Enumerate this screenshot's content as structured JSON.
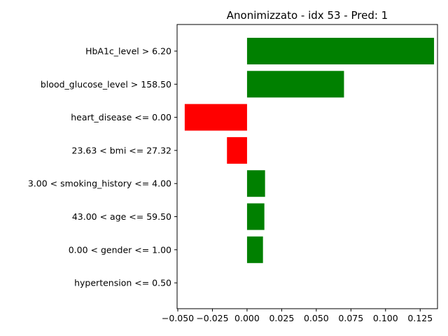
{
  "chart_data": {
    "type": "bar",
    "orientation": "horizontal",
    "title": "Anonimizzato - idx 53 - Pred: 1",
    "xlabel": "",
    "ylabel": "",
    "xlim": [
      -0.0505,
      0.1375
    ],
    "x_ticks": [
      -0.05,
      -0.025,
      0.0,
      0.025,
      0.05,
      0.075,
      0.1,
      0.125
    ],
    "x_tick_labels": [
      "−0.050",
      "−0.025",
      "0.000",
      "0.025",
      "0.050",
      "0.075",
      "0.100",
      "0.125"
    ],
    "grid": false,
    "legend": "none",
    "categories": [
      "HbA1c_level > 6.20",
      "blood_glucose_level > 158.50",
      "heart_disease <= 0.00",
      "23.63 < bmi <= 27.32",
      "3.00 < smoking_history <= 4.00",
      "43.00 < age <= 59.50",
      "0.00 < gender <= 1.00",
      "hypertension <= 0.50"
    ],
    "values": [
      0.135,
      0.07,
      -0.045,
      -0.0145,
      0.013,
      0.0125,
      0.0115,
      0.0
    ],
    "colors": {
      "positive": "#008000",
      "negative": "#ff0000"
    }
  }
}
